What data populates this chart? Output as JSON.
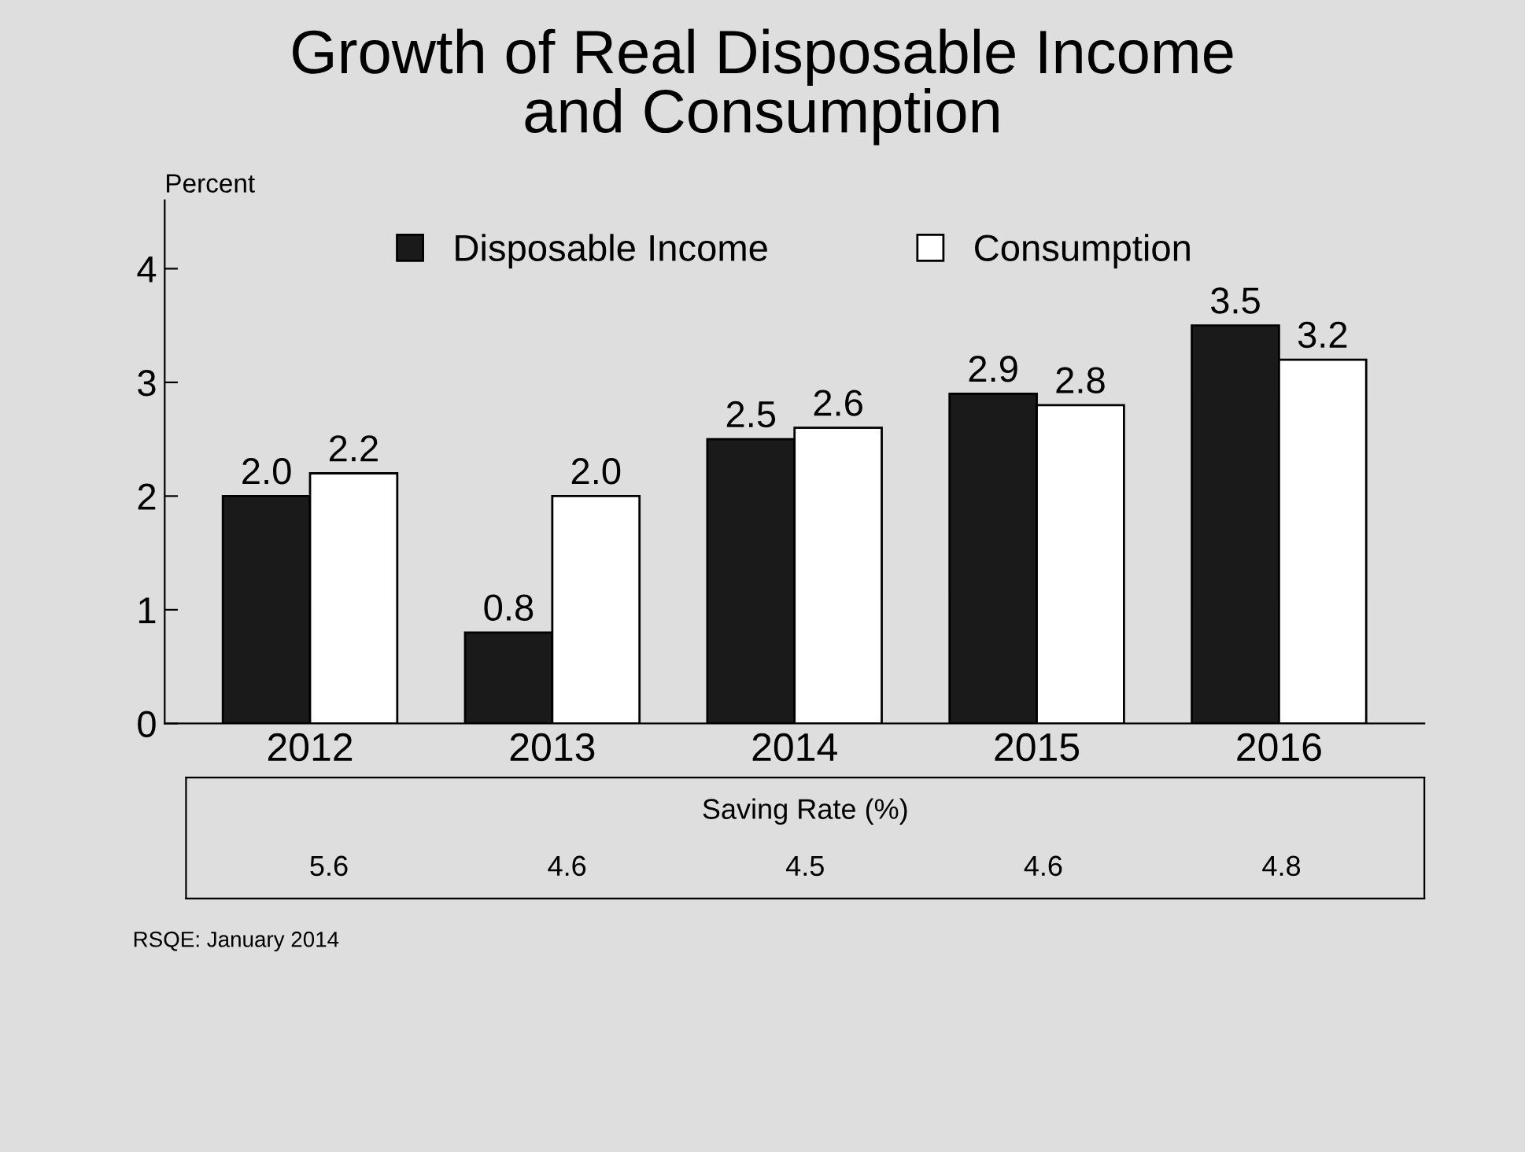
{
  "chart_data": {
    "type": "bar",
    "title": "Growth of Real Disposable Income\nand Consumption",
    "ylabel": "Percent",
    "categories": [
      "2012",
      "2013",
      "2014",
      "2015",
      "2016"
    ],
    "series": [
      {
        "name": "Disposable Income",
        "color": "#1a1a1a",
        "values": [
          2.0,
          0.8,
          2.5,
          2.9,
          3.5
        ],
        "value_labels": [
          "2.0",
          "0.8",
          "2.5",
          "2.9",
          "3.5"
        ]
      },
      {
        "name": "Consumption",
        "color": "#ffffff",
        "values": [
          2.2,
          2.0,
          2.6,
          2.8,
          3.2
        ],
        "value_labels": [
          "2.2",
          "2.0",
          "2.6",
          "2.8",
          "3.2"
        ]
      }
    ],
    "ylim": [
      0,
      4.6
    ],
    "yticks": [
      0,
      1,
      2,
      3,
      4
    ],
    "grid": false,
    "legend": "top",
    "annotations": [
      "Saving Rate (%)",
      "5.6",
      "4.6",
      "4.5",
      "4.6",
      "4.8",
      "RSQE: January 2014"
    ]
  }
}
